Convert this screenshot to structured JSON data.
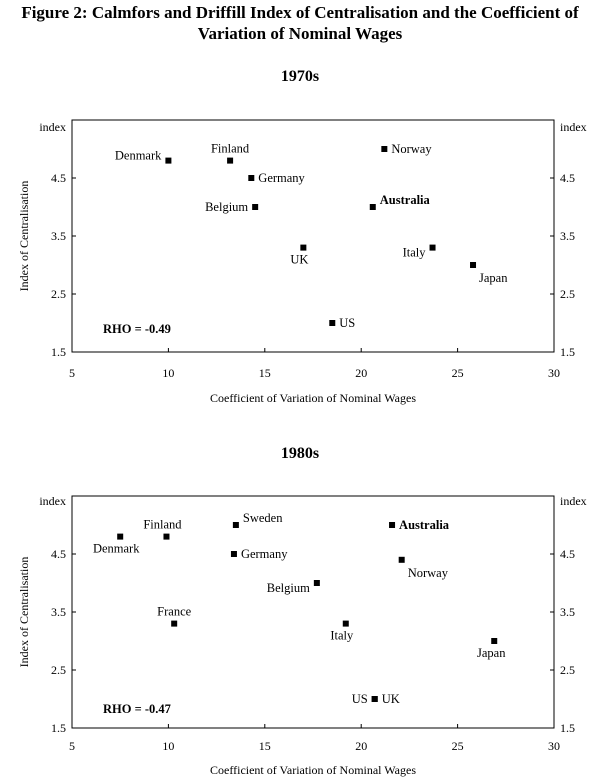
{
  "figure_title_line1": "Figure 2: Calmfors and Driffill Index of Centralisation and the Coefficient of",
  "figure_title_line2": "Variation of Nominal Wages",
  "chart_data": [
    {
      "type": "scatter",
      "title": "1970s",
      "xlabel": "Coefficient of Variation of Nominal Wages",
      "ylabel": "Index of Centralisation",
      "y_unit_label_left": "index",
      "y_unit_label_right": "index",
      "xlim": [
        5,
        30
      ],
      "ylim": [
        1.5,
        5.5
      ],
      "x_ticks": [
        5,
        10,
        15,
        20,
        25,
        30
      ],
      "y_ticks": [
        1.5,
        2.5,
        3.5,
        4.5
      ],
      "x_tick_labels": [
        "5",
        "10",
        "15",
        "20",
        "25",
        "30"
      ],
      "y_tick_labels": [
        "1.5",
        "2.5",
        "3.5",
        "4.5"
      ],
      "annotation": "RHO = -0.49",
      "points": [
        {
          "label": "Denmark",
          "x": 10.0,
          "y": 4.8,
          "pos": "left-up",
          "bold": false
        },
        {
          "label": "Finland",
          "x": 13.2,
          "y": 4.8,
          "pos": "above",
          "bold": false
        },
        {
          "label": "Germany",
          "x": 14.3,
          "y": 4.5,
          "pos": "right",
          "bold": false
        },
        {
          "label": "Belgium",
          "x": 14.5,
          "y": 4.0,
          "pos": "left",
          "bold": false
        },
        {
          "label": "UK",
          "x": 17.0,
          "y": 3.3,
          "pos": "below-left",
          "bold": false
        },
        {
          "label": "US",
          "x": 18.5,
          "y": 2.0,
          "pos": "right",
          "bold": false
        },
        {
          "label": "Norway",
          "x": 21.2,
          "y": 5.0,
          "pos": "right",
          "bold": false
        },
        {
          "label": "Australia",
          "x": 20.6,
          "y": 4.0,
          "pos": "right-up",
          "bold": true
        },
        {
          "label": "Italy",
          "x": 23.7,
          "y": 3.3,
          "pos": "left-down",
          "bold": false
        },
        {
          "label": "Japan",
          "x": 25.8,
          "y": 3.0,
          "pos": "below-right",
          "bold": false
        }
      ]
    },
    {
      "type": "scatter",
      "title": "1980s",
      "xlabel": "Coefficient of Variation of Nominal Wages",
      "ylabel": "Index of Centralisation",
      "y_unit_label_left": "index",
      "y_unit_label_right": "index",
      "xlim": [
        5,
        30
      ],
      "ylim": [
        1.5,
        5.5
      ],
      "x_ticks": [
        5,
        10,
        15,
        20,
        25,
        30
      ],
      "y_ticks": [
        1.5,
        2.5,
        3.5,
        4.5
      ],
      "x_tick_labels": [
        "5",
        "10",
        "15",
        "20",
        "25",
        "30"
      ],
      "y_tick_labels": [
        "1.5",
        "2.5",
        "3.5",
        "4.5"
      ],
      "annotation": "RHO = -0.47",
      "points": [
        {
          "label": "Denmark",
          "x": 7.5,
          "y": 4.8,
          "pos": "below-left",
          "bold": false
        },
        {
          "label": "Finland",
          "x": 9.9,
          "y": 4.8,
          "pos": "above-left",
          "bold": false
        },
        {
          "label": "Sweden",
          "x": 13.5,
          "y": 5.0,
          "pos": "right-up",
          "bold": false
        },
        {
          "label": "Germany",
          "x": 13.4,
          "y": 4.5,
          "pos": "right",
          "bold": false
        },
        {
          "label": "Belgium",
          "x": 17.7,
          "y": 4.0,
          "pos": "left-down",
          "bold": false
        },
        {
          "label": "France",
          "x": 10.3,
          "y": 3.3,
          "pos": "above",
          "bold": false
        },
        {
          "label": "Italy",
          "x": 19.2,
          "y": 3.3,
          "pos": "below-left",
          "bold": false
        },
        {
          "label": "US",
          "x": 20.7,
          "y": 2.0,
          "pos": "left",
          "bold": false
        },
        {
          "label": "UK",
          "x": 20.7,
          "y": 2.0,
          "pos": "right",
          "bold": false
        },
        {
          "label": "Australia",
          "x": 21.6,
          "y": 5.0,
          "pos": "right",
          "bold": true
        },
        {
          "label": "Norway",
          "x": 22.1,
          "y": 4.4,
          "pos": "below-right",
          "bold": false
        },
        {
          "label": "Japan",
          "x": 26.9,
          "y": 3.0,
          "pos": "below",
          "bold": false
        }
      ]
    }
  ]
}
